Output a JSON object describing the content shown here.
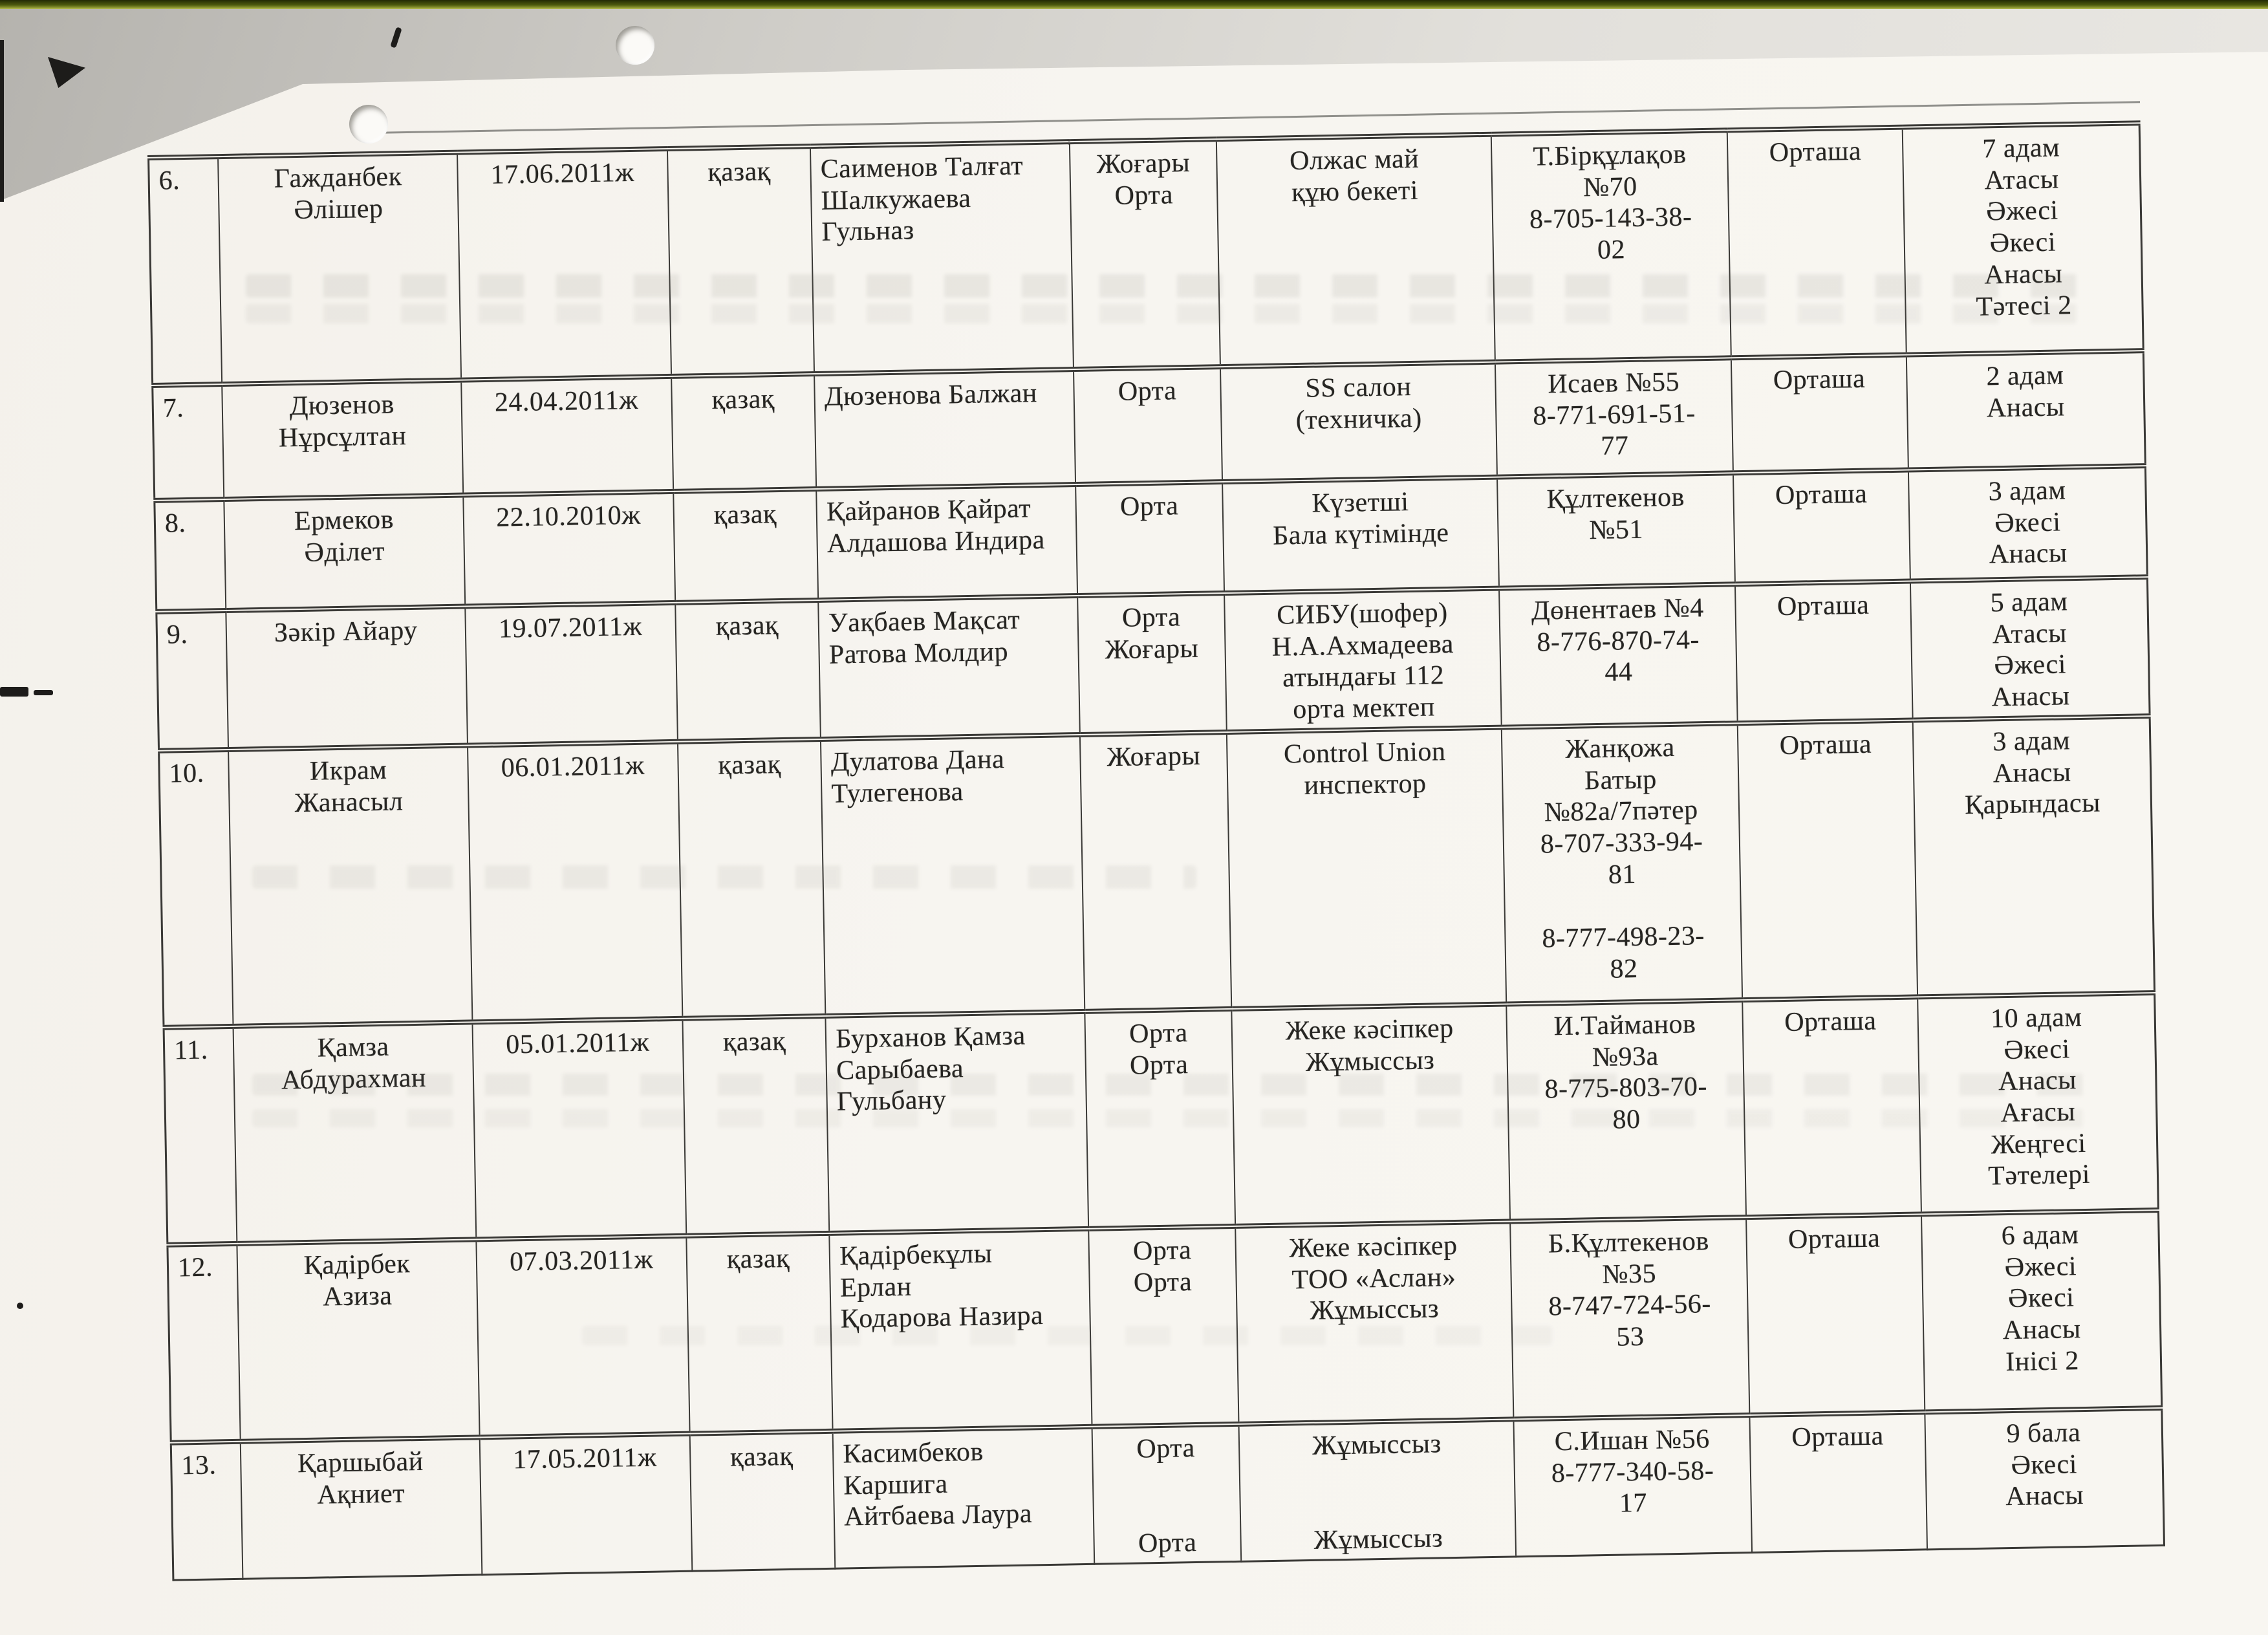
{
  "table": {
    "rows": [
      {
        "num": "6.",
        "name": "Гажданбек\nӘлішер",
        "birth_date": "17.06.2011ж",
        "nationality": "қазақ",
        "parents": "Саименов Талғат\nШалкужаева\nГульназ",
        "education": "Жоғары\nОрта",
        "workplace": "Олжас май\nқұю бекеті",
        "address_phone": "Т.Бірқұлақов\n№70\n8-705-143-38-\n02",
        "living_condition": "Орташа",
        "family": "7 адам\nАтасы\nӘжесі\nӘкесі\nАнасы\nТәтесі 2"
      },
      {
        "num": "7.",
        "name": "Дюзенов\nНұрсұлтан",
        "birth_date": "24.04.2011ж",
        "nationality": "қазақ",
        "parents": "Дюзенова Балжан",
        "education": "Орта",
        "workplace": "SS салон\n(техничка)",
        "address_phone": "Исаев №55\n8-771-691-51-\n77",
        "living_condition": "Орташа",
        "family": "2 адам\nАнасы"
      },
      {
        "num": "8.",
        "name": "Ермеков\nӘділет",
        "birth_date": "22.10.2010ж",
        "nationality": "қазақ",
        "parents": "Қайранов Қайрат\nАлдашова Индира",
        "education": "Орта",
        "workplace": "Күзетші\nБала күтімінде",
        "address_phone": "Құлтекенов\n№51",
        "living_condition": "Орташа",
        "family": "3 адам\nӘкесі\nАнасы"
      },
      {
        "num": "9.",
        "name": "Зәкір Айару",
        "birth_date": "19.07.2011ж",
        "nationality": "қазақ",
        "parents": "Уақбаев Мақсат\nРатова Молдир",
        "education": "Орта\nЖоғары",
        "workplace": "СИБУ(шофер)\nН.А.Ахмадеева\nатындағы 112\nорта мектеп",
        "address_phone": "Дөнентаев №4\n8-776-870-74-\n44",
        "living_condition": "Орташа",
        "family": "5 адам\nАтасы\nӘжесі\nАнасы"
      },
      {
        "num": "10.",
        "name": "Икрам\nЖанасыл",
        "birth_date": "06.01.2011ж",
        "nationality": "қазақ",
        "parents": "Дулатова Дана\nТулегенова",
        "education": "Жоғары",
        "workplace": "Control Union\nинспектор",
        "address_phone": "Жанқожа\nБатыр\n№82а/7пәтер\n8-707-333-94-\n81\n\n8-777-498-23-\n82",
        "living_condition": "Орташа",
        "family": "3 адам\nАнасы\nҚарындасы"
      },
      {
        "num": "11.",
        "name": "Қамза\nАбдурахман",
        "birth_date": "05.01.2011ж",
        "nationality": "қазақ",
        "parents": "Бурханов Қамза\nСарыбаева\nГульбану",
        "education": "Орта\nОрта",
        "workplace": "Жеке кәсіпкер\nЖұмыссыз",
        "address_phone": "И.Тайманов\n№93а\n8-775-803-70-\n80",
        "living_condition": "Орташа",
        "family": "10 адам\nӘкесі\nАнасы\nАғасы\nЖеңгесі\nТәтелері"
      },
      {
        "num": "12.",
        "name": "Қадірбек\nАзиза",
        "birth_date": "07.03.2011ж",
        "nationality": "қазақ",
        "parents": "Қадірбекұлы\nЕрлан\nҚодарова Назира",
        "education": "Орта\nОрта",
        "workplace": "Жеке кәсіпкер\nТОО «Аслан»\nЖұмыссыз",
        "address_phone": "Б.Құлтекенов\n№35\n8-747-724-56-\n53",
        "living_condition": "Орташа",
        "family": "6 адам\nӘжесі\nӘкесі\nАнасы\nІнісі 2"
      },
      {
        "num": "13.",
        "name": "Қаршыбай\nАқниет",
        "birth_date": "17.05.2011ж",
        "nationality": "қазақ",
        "parents": "Касимбеков\nКаршига\nАйтбаева Лаура",
        "education": "Орта\n\n\nОрта",
        "workplace": "Жұмыссыз\n\n\nЖұмыссыз",
        "address_phone": "С.Ишан №56\n8-777-340-58-\n17",
        "living_condition": "Орташа",
        "family": "9 бала\nӘкесі\nАнасы"
      }
    ]
  }
}
